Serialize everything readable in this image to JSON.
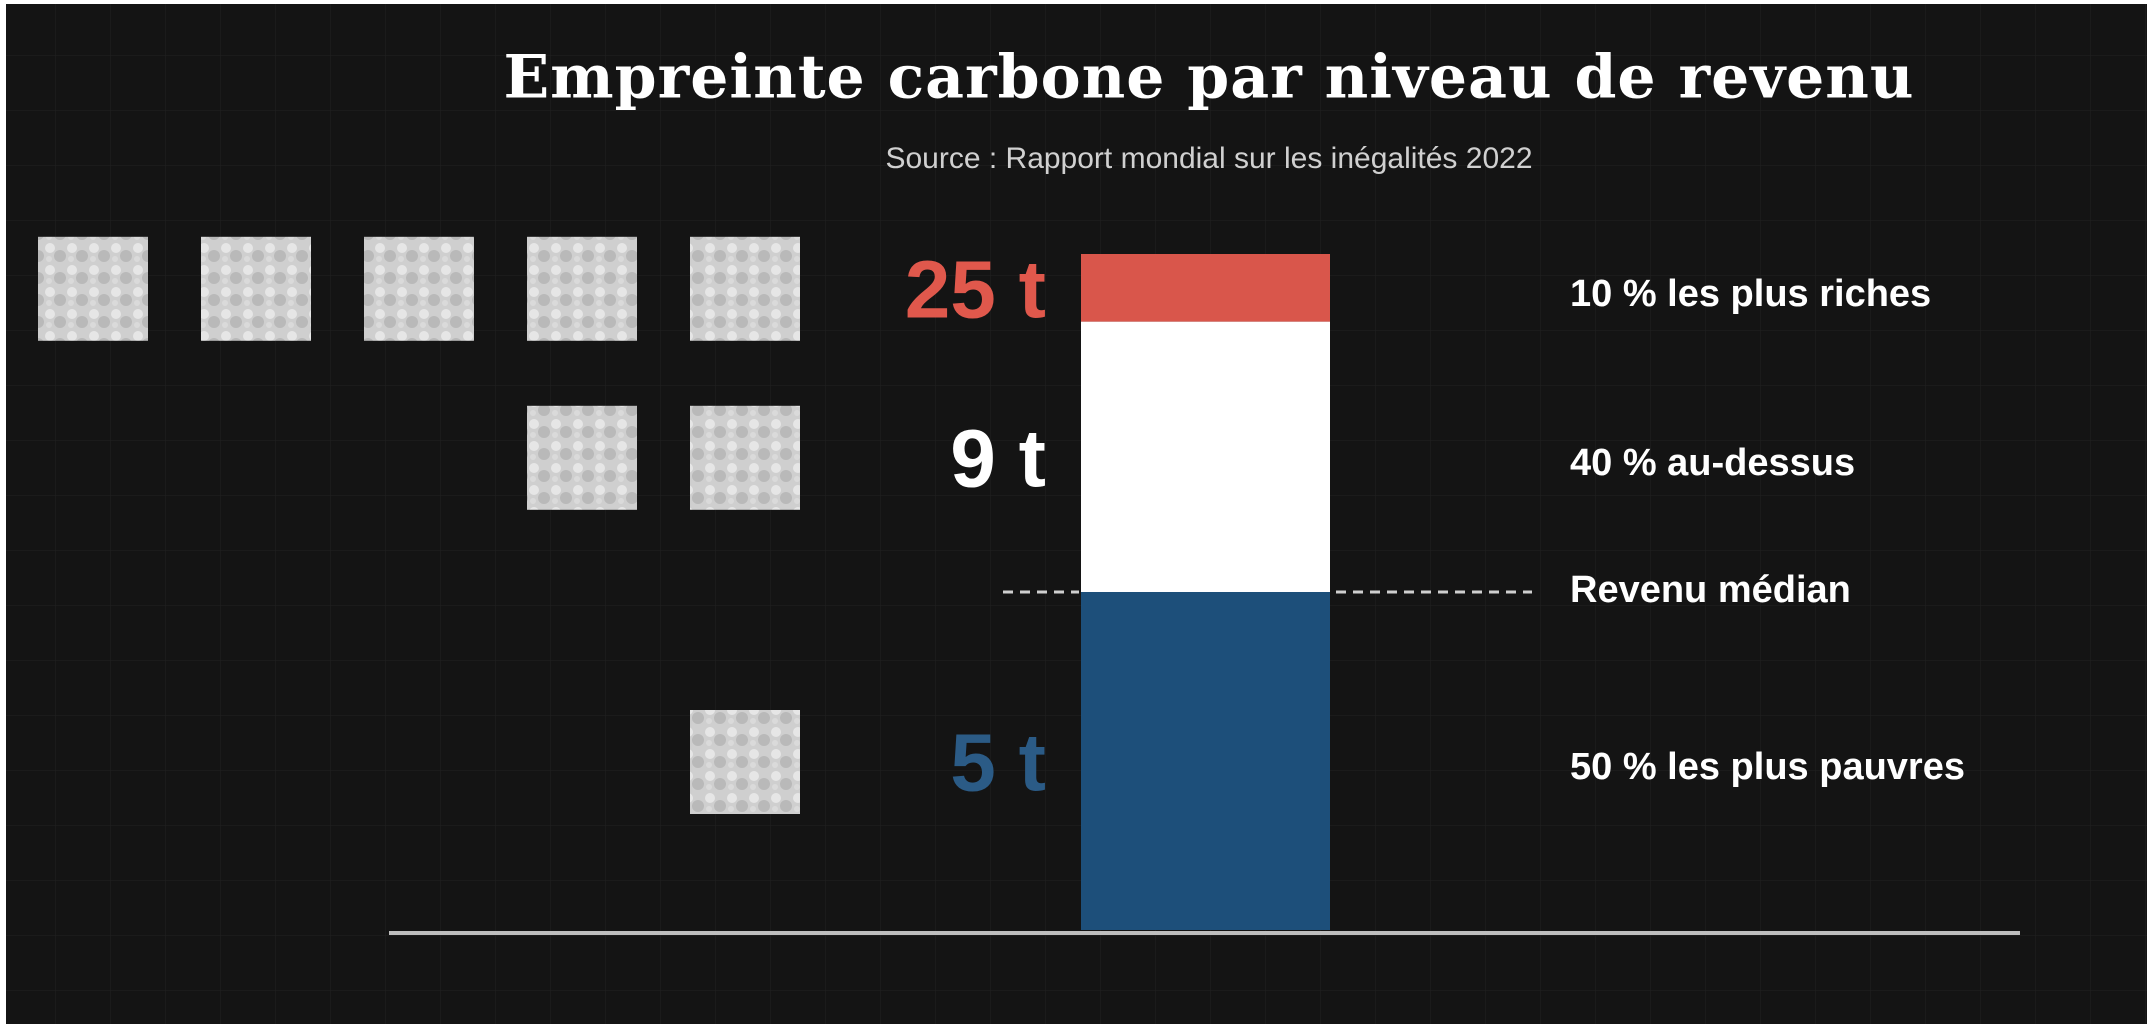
{
  "chart_data": {
    "type": "stacked_bar",
    "title": "Empreinte carbone par niveau de revenu",
    "subtitle": "Source : Rapport mondial sur les inégalités 2022",
    "categories": [
      "50 % les plus pauvres",
      "40 % au-dessus",
      "10 % les plus riches"
    ],
    "shares": [
      50,
      40,
      10
    ],
    "values": [
      5,
      9,
      25
    ],
    "value_labels": [
      "5 t",
      "9 t",
      "25 t"
    ],
    "colors": [
      "#1d4f7a",
      "#ffffff",
      "#d9564b"
    ],
    "label_colors": [
      "#2b5b86",
      "#ffffff",
      "#e0584c"
    ],
    "icons": [
      1,
      2,
      5
    ],
    "annotation": "Revenu médian"
  }
}
